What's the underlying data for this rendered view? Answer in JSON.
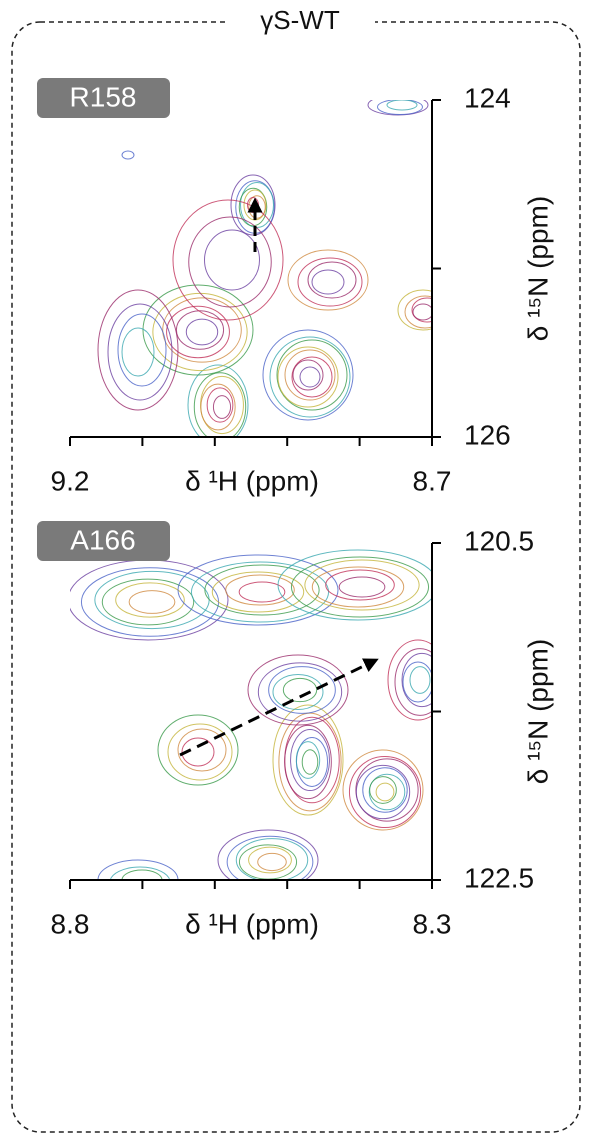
{
  "title": "γS-WT",
  "chart_data": [
    {
      "type": "contour",
      "panel_label": "R158",
      "xlabel": "δ ¹H (ppm)",
      "ylabel": "δ ¹⁵N (ppm)",
      "xlim": [
        9.2,
        8.7
      ],
      "ylim": [
        124,
        126
      ],
      "xticks": [
        9.2,
        8.7
      ],
      "minor_xticks": [
        9.1,
        9.0,
        8.9,
        8.8
      ],
      "yticks": [
        124,
        126
      ],
      "minor_yticks": [
        125
      ]
    },
    {
      "type": "contour",
      "panel_label": "A166",
      "xlabel": "δ ¹H (ppm)",
      "ylabel": "δ ¹⁵N (ppm)",
      "xlim": [
        8.8,
        8.3
      ],
      "ylim": [
        120.5,
        122.5
      ],
      "xticks": [
        8.8,
        8.3
      ],
      "minor_xticks": [
        8.7,
        8.6,
        8.5,
        8.4
      ],
      "yticks": [
        120.5,
        122.5
      ],
      "minor_yticks": [
        121.5
      ]
    }
  ]
}
